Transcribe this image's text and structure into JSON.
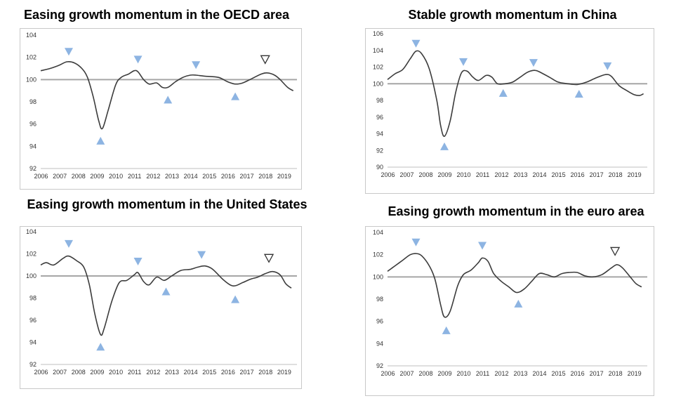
{
  "chart_data": [
    {
      "type": "line",
      "title": "Easing growth momentum in the OECD area",
      "xlabel": "",
      "ylabel": "",
      "ylim": [
        92,
        104
      ],
      "yticks": [
        92,
        94,
        96,
        98,
        100,
        102,
        104
      ],
      "xlim": [
        2006,
        2019.7
      ],
      "xticks": [
        2006,
        2007,
        2008,
        2009,
        2010,
        2011,
        2012,
        2013,
        2014,
        2015,
        2016,
        2017,
        2018,
        2019
      ],
      "reference_line": 100,
      "grid": false,
      "series": [
        {
          "x": [
            2006,
            2006.5,
            2007,
            2007.4,
            2007.8,
            2008.2,
            2008.5,
            2008.8,
            2009.1,
            2009.3,
            2009.6,
            2010,
            2010.3,
            2010.7,
            2011,
            2011.2,
            2011.5,
            2011.8,
            2012.2,
            2012.5,
            2012.8,
            2013.2,
            2013.6,
            2014,
            2014.3,
            2014.8,
            2015.5,
            2016,
            2016.4,
            2016.8,
            2017.3,
            2017.8,
            2018.1,
            2018.5,
            2018.8,
            2019.2,
            2019.5
          ],
          "y": [
            100.8,
            101.0,
            101.3,
            101.6,
            101.5,
            101.0,
            100.2,
            98.5,
            96.3,
            95.6,
            97.2,
            99.5,
            100.2,
            100.5,
            100.8,
            100.7,
            100.0,
            99.6,
            99.7,
            99.3,
            99.3,
            99.8,
            100.2,
            100.4,
            100.4,
            100.3,
            100.2,
            99.8,
            99.6,
            99.7,
            100.1,
            100.5,
            100.6,
            100.4,
            100.0,
            99.3,
            99.0
          ]
        }
      ],
      "markers": [
        {
          "x": 2007.5,
          "y": 102.5,
          "dir": "down",
          "filled": true
        },
        {
          "x": 2009.2,
          "y": 94.5,
          "dir": "up",
          "filled": true
        },
        {
          "x": 2011.2,
          "y": 101.8,
          "dir": "down",
          "filled": true
        },
        {
          "x": 2012.8,
          "y": 98.2,
          "dir": "up",
          "filled": true
        },
        {
          "x": 2014.3,
          "y": 101.3,
          "dir": "down",
          "filled": true
        },
        {
          "x": 2016.4,
          "y": 98.5,
          "dir": "up",
          "filled": true
        },
        {
          "x": 2018.0,
          "y": 101.8,
          "dir": "down",
          "filled": false
        }
      ]
    },
    {
      "type": "line",
      "title": "Stable growth momentum in China",
      "xlabel": "",
      "ylabel": "",
      "ylim": [
        90,
        106
      ],
      "yticks": [
        90,
        92,
        94,
        96,
        98,
        100,
        102,
        104,
        106
      ],
      "xlim": [
        2006,
        2019.7
      ],
      "xticks": [
        2006,
        2007,
        2008,
        2009,
        2010,
        2011,
        2012,
        2013,
        2014,
        2015,
        2016,
        2017,
        2018,
        2019
      ],
      "reference_line": 100,
      "grid": false,
      "series": [
        {
          "x": [
            2006,
            2006.4,
            2006.8,
            2007.2,
            2007.5,
            2007.8,
            2008.2,
            2008.6,
            2008.8,
            2009.0,
            2009.3,
            2009.6,
            2009.9,
            2010.2,
            2010.5,
            2010.8,
            2011.2,
            2011.5,
            2011.8,
            2012.2,
            2012.6,
            2013.0,
            2013.4,
            2013.8,
            2014.2,
            2014.6,
            2015.0,
            2015.5,
            2016.0,
            2016.5,
            2017.0,
            2017.5,
            2017.8,
            2018.2,
            2018.6,
            2019.0,
            2019.3,
            2019.5
          ],
          "y": [
            100.5,
            101.2,
            101.7,
            103.0,
            103.9,
            103.6,
            101.8,
            98.0,
            95.0,
            93.7,
            95.5,
            99.0,
            101.3,
            101.5,
            100.8,
            100.4,
            101.0,
            100.8,
            100.0,
            100.0,
            100.2,
            100.8,
            101.4,
            101.6,
            101.2,
            100.7,
            100.2,
            100.0,
            99.9,
            100.2,
            100.7,
            101.1,
            100.9,
            99.8,
            99.2,
            98.7,
            98.6,
            98.8
          ]
        }
      ],
      "markers": [
        {
          "x": 2007.5,
          "y": 104.8,
          "dir": "down",
          "filled": true
        },
        {
          "x": 2009.0,
          "y": 92.5,
          "dir": "up",
          "filled": true
        },
        {
          "x": 2010.0,
          "y": 102.6,
          "dir": "down",
          "filled": true
        },
        {
          "x": 2012.1,
          "y": 98.9,
          "dir": "up",
          "filled": true
        },
        {
          "x": 2013.7,
          "y": 102.5,
          "dir": "down",
          "filled": true
        },
        {
          "x": 2016.1,
          "y": 98.8,
          "dir": "up",
          "filled": true
        },
        {
          "x": 2017.6,
          "y": 102.1,
          "dir": "down",
          "filled": true
        }
      ]
    },
    {
      "type": "line",
      "title": "Easing growth momentum in the United States",
      "xlabel": "",
      "ylabel": "",
      "ylim": [
        92,
        104
      ],
      "yticks": [
        92,
        94,
        96,
        98,
        100,
        102,
        104
      ],
      "xlim": [
        2006,
        2019.7
      ],
      "xticks": [
        2006,
        2007,
        2008,
        2009,
        2010,
        2011,
        2012,
        2013,
        2014,
        2015,
        2016,
        2017,
        2018,
        2019
      ],
      "reference_line": 100,
      "grid": false,
      "series": [
        {
          "x": [
            2006,
            2006.3,
            2006.7,
            2007.2,
            2007.5,
            2007.9,
            2008.3,
            2008.6,
            2008.9,
            2009.2,
            2009.4,
            2009.8,
            2010.2,
            2010.6,
            2011.0,
            2011.2,
            2011.5,
            2011.8,
            2012.2,
            2012.6,
            2013.0,
            2013.5,
            2014.0,
            2014.4,
            2014.8,
            2015.2,
            2015.8,
            2016.3,
            2016.8,
            2017.2,
            2017.6,
            2018.0,
            2018.4,
            2018.8,
            2019.1,
            2019.4
          ],
          "y": [
            101.0,
            101.2,
            101.0,
            101.6,
            101.8,
            101.4,
            100.8,
            99.2,
            96.5,
            94.7,
            95.3,
            97.7,
            99.4,
            99.6,
            100.1,
            100.3,
            99.5,
            99.2,
            99.9,
            99.6,
            100.0,
            100.5,
            100.6,
            100.8,
            100.9,
            100.6,
            99.6,
            99.1,
            99.4,
            99.7,
            99.9,
            100.2,
            100.4,
            100.1,
            99.3,
            98.9
          ]
        }
      ],
      "markers": [
        {
          "x": 2007.5,
          "y": 102.9,
          "dir": "down",
          "filled": true
        },
        {
          "x": 2009.2,
          "y": 93.6,
          "dir": "up",
          "filled": true
        },
        {
          "x": 2011.2,
          "y": 101.3,
          "dir": "down",
          "filled": true
        },
        {
          "x": 2012.7,
          "y": 98.6,
          "dir": "up",
          "filled": true
        },
        {
          "x": 2014.6,
          "y": 101.9,
          "dir": "down",
          "filled": true
        },
        {
          "x": 2016.4,
          "y": 97.9,
          "dir": "up",
          "filled": true
        },
        {
          "x": 2018.2,
          "y": 101.6,
          "dir": "down",
          "filled": false
        }
      ]
    },
    {
      "type": "line",
      "title": "Easing growth momentum in the euro area",
      "xlabel": "",
      "ylabel": "",
      "ylim": [
        92,
        104
      ],
      "yticks": [
        92,
        94,
        96,
        98,
        100,
        102,
        104
      ],
      "xlim": [
        2006,
        2019.7
      ],
      "xticks": [
        2006,
        2007,
        2008,
        2009,
        2010,
        2011,
        2012,
        2013,
        2014,
        2015,
        2016,
        2017,
        2018,
        2019
      ],
      "reference_line": 100,
      "grid": false,
      "series": [
        {
          "x": [
            2006,
            2006.4,
            2006.8,
            2007.2,
            2007.5,
            2007.8,
            2008.2,
            2008.5,
            2008.8,
            2009.0,
            2009.3,
            2009.7,
            2010.0,
            2010.4,
            2010.8,
            2011.0,
            2011.3,
            2011.6,
            2012.0,
            2012.4,
            2012.8,
            2013.2,
            2013.6,
            2014.0,
            2014.4,
            2014.8,
            2015.2,
            2015.6,
            2016.0,
            2016.4,
            2016.8,
            2017.3,
            2017.8,
            2018.1,
            2018.4,
            2018.8,
            2019.1,
            2019.4
          ],
          "y": [
            100.5,
            101.0,
            101.5,
            102.0,
            102.1,
            101.9,
            101.0,
            99.8,
            97.5,
            96.4,
            96.9,
            99.2,
            100.2,
            100.6,
            101.3,
            101.7,
            101.4,
            100.3,
            99.6,
            99.1,
            98.6,
            98.9,
            99.6,
            100.3,
            100.2,
            100.0,
            100.3,
            100.4,
            100.4,
            100.1,
            100.0,
            100.2,
            100.8,
            101.1,
            100.8,
            100.0,
            99.4,
            99.1
          ]
        }
      ],
      "markers": [
        {
          "x": 2007.5,
          "y": 103.1,
          "dir": "down",
          "filled": true
        },
        {
          "x": 2009.1,
          "y": 95.2,
          "dir": "up",
          "filled": true
        },
        {
          "x": 2011.0,
          "y": 102.8,
          "dir": "down",
          "filled": true
        },
        {
          "x": 2012.9,
          "y": 97.6,
          "dir": "up",
          "filled": true
        },
        {
          "x": 2018.0,
          "y": 102.3,
          "dir": "down",
          "filled": false
        }
      ]
    }
  ],
  "colors": {
    "line": "#3c3c3c",
    "reference_line": "#a6a6a6",
    "marker_fill": "#8db4e2",
    "marker_outline": "#333333",
    "frame": "#c8c8c8"
  }
}
